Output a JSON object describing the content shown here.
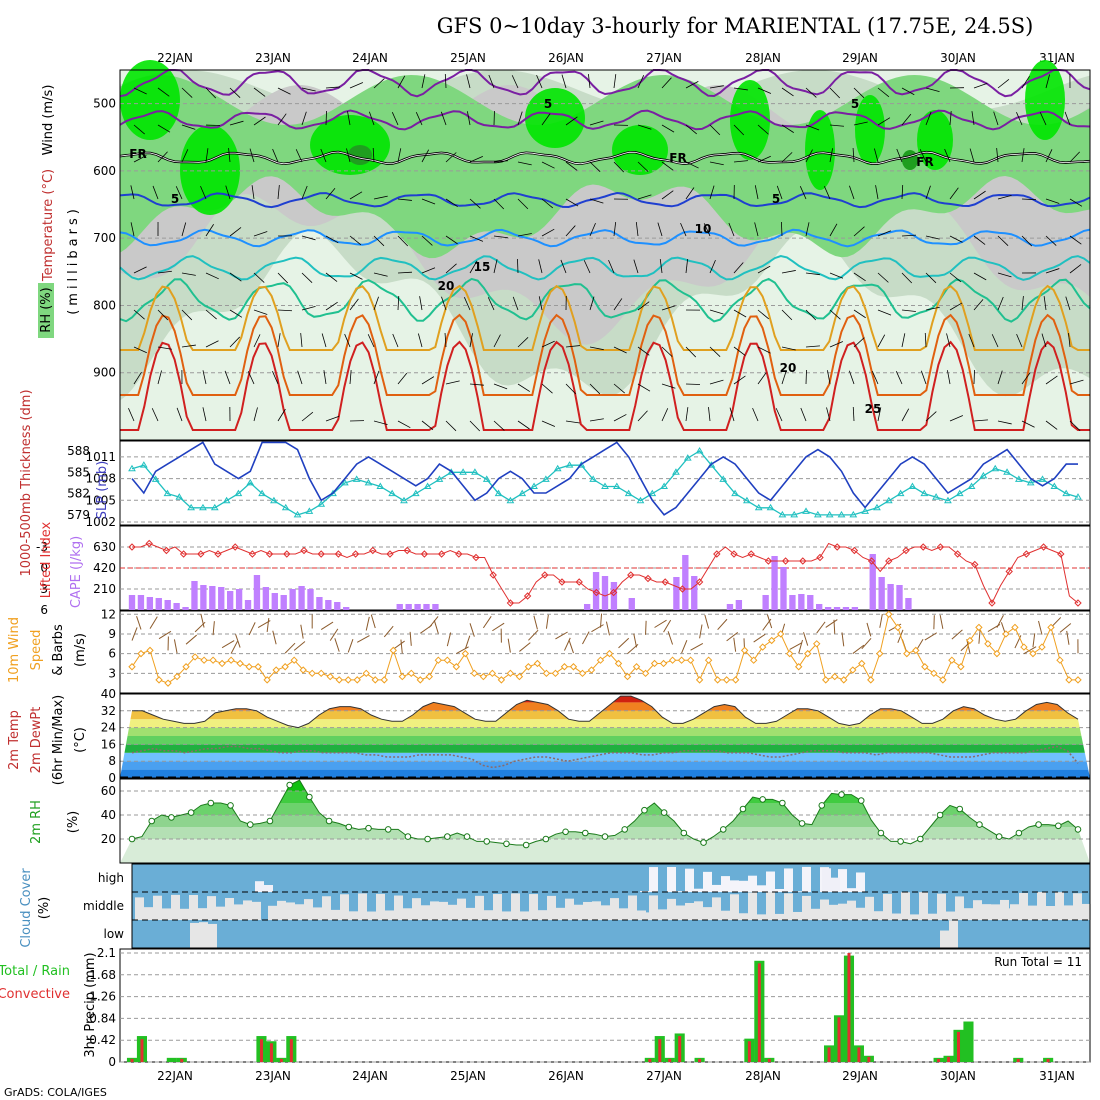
{
  "title": "GFS 0~10day 3-hourly for MARIENTAL (17.75E, 24.5S)",
  "footer": "GrADS: COLA/IGES",
  "dates": [
    "22JAN",
    "23JAN",
    "24JAN",
    "25JAN",
    "26JAN",
    "27JAN",
    "28JAN",
    "29JAN",
    "30JAN",
    "31JAN"
  ],
  "colors": {
    "rh_light": "#e6f3e6",
    "rh_mid": "#c7dcc7",
    "rh_grey": "#c9c9c9",
    "rh_green": "#7fd77f",
    "rh_bright": "#00e600",
    "rh_dark": "#1f9e1f",
    "slp": "#2040c0",
    "thickness": "#20c0c0",
    "lifted": "#e03030",
    "cape": "#c080ff",
    "speed": "#f0a020",
    "barb": "#8b5a2b",
    "cloud": "#6aaed6",
    "cloud_clear": "#e6e6e6",
    "rain_total": "#22c022",
    "rain_conv": "#e03030"
  },
  "chart_data": [
    {
      "id": "upper_air",
      "type": "heatmap",
      "legend_labels": {
        "rh": "RH (%)",
        "temp": "Temperature (°C)",
        "wind": "Wind (m/s)",
        "axis": "(millibars)"
      },
      "yticks": [
        500,
        600,
        700,
        800,
        900
      ],
      "ylim": [
        1000,
        450
      ],
      "contour_labels": [
        "5",
        "5",
        "FR",
        "FR",
        "FR",
        "5",
        "5",
        "10",
        "15",
        "20",
        "20",
        "25"
      ]
    },
    {
      "id": "slp_thickness",
      "type": "line",
      "left_ylabel": "1000-500mb Thickness (dm)",
      "right_ylabel": "SLP (mb)",
      "left_ticks": [
        579,
        582,
        585,
        588
      ],
      "right_ticks": [
        1002,
        1005,
        1008,
        1011
      ],
      "series": [
        {
          "name": "SLP (mb)",
          "values": [
            1008,
            1006,
            1009,
            1010,
            1011,
            1012,
            1013,
            1010,
            1009,
            1008,
            1009,
            1013,
            1013,
            1013,
            1012,
            1008,
            1005,
            1006,
            1008,
            1010,
            1011,
            1010,
            1009,
            1008,
            1007,
            1008,
            1010,
            1009,
            1007,
            1005,
            1006,
            1008,
            1009,
            1008,
            1006,
            1006,
            1007,
            1008,
            1010,
            1011,
            1012,
            1013,
            1011,
            1008,
            1005,
            1003,
            1004,
            1006,
            1008,
            1010,
            1011,
            1010,
            1008,
            1006,
            1005,
            1007,
            1009,
            1011,
            1012,
            1011,
            1009,
            1006,
            1004,
            1006,
            1008,
            1010,
            1011,
            1010,
            1008,
            1006,
            1007,
            1008,
            1010,
            1011,
            1012,
            1010,
            1008,
            1007,
            1008,
            1010,
            1010
          ]
        },
        {
          "name": "1000-500mb Thickness (dm)",
          "values": [
            585.5,
            586,
            584,
            582,
            581.5,
            580,
            580,
            580,
            581,
            582,
            583.5,
            582,
            581,
            580,
            579,
            579.5,
            580.5,
            582,
            583.5,
            584,
            583.5,
            583,
            582,
            581,
            582,
            583,
            584,
            585,
            585,
            585,
            584,
            582,
            581,
            582,
            583,
            584,
            585.5,
            586,
            586,
            584,
            583,
            583,
            582,
            581,
            582,
            583,
            585,
            587,
            588,
            586,
            584,
            582,
            581,
            580,
            580,
            579,
            579,
            579.5,
            579,
            579,
            579,
            579,
            579.5,
            580,
            581,
            582,
            583,
            582,
            581.5,
            581,
            582,
            583,
            584.5,
            585.5,
            585,
            584,
            583.5,
            584,
            583,
            582,
            581.5
          ]
        }
      ]
    },
    {
      "id": "lifted_cape",
      "type": "bar",
      "left_ylabel": "Lifted Index",
      "right_ylabel": "CAPE (J/kg)",
      "left_ticks": [
        "-3",
        "0",
        "3",
        "6"
      ],
      "right_ticks": [
        210,
        420,
        630
      ],
      "lifted_ylim": [
        -6,
        6
      ],
      "cape_ylim": [
        0,
        840
      ],
      "cape": [
        150,
        150,
        130,
        120,
        100,
        70,
        30,
        290,
        250,
        240,
        230,
        190,
        210,
        100,
        350,
        230,
        170,
        150,
        210,
        240,
        210,
        130,
        100,
        80,
        30,
        0,
        0,
        0,
        0,
        0,
        60,
        60,
        60,
        60,
        60,
        0,
        0,
        0,
        0,
        0,
        0,
        0,
        0,
        0,
        0,
        0,
        0,
        0,
        0,
        0,
        0,
        60,
        380,
        340,
        280,
        0,
        120,
        0,
        0,
        0,
        0,
        330,
        550,
        340,
        0,
        0,
        0,
        60,
        100,
        0,
        0,
        150,
        540,
        430,
        150,
        160,
        150,
        60,
        30,
        30,
        30,
        30,
        0,
        560,
        330,
        260,
        250,
        120,
        0,
        0,
        0,
        0,
        0,
        0,
        0,
        0,
        0,
        0,
        0,
        0,
        0,
        0,
        0,
        0,
        0,
        0,
        0
      ],
      "lifted": [
        -3,
        -3,
        -3.5,
        -3,
        -2.5,
        -3,
        -2,
        -2,
        -2,
        -2.5,
        -2,
        -2.5,
        -3,
        -2.5,
        -2,
        -2.5,
        -2,
        -2,
        -2,
        -2,
        -2.5,
        -2,
        -2,
        -2,
        -2,
        -1.5,
        -2,
        -2,
        -2.5,
        -2,
        -2,
        -2.5,
        -2.5,
        -2,
        -2,
        -2,
        -2,
        -2.5,
        -2,
        -2,
        -1.5,
        -1.5,
        1,
        3,
        5,
        5,
        4,
        2,
        1,
        1,
        2,
        2,
        2,
        3,
        3.5,
        4,
        3.5,
        2,
        1,
        1,
        1.5,
        2,
        2,
        2.5,
        3,
        3,
        2,
        0,
        -2,
        -3,
        -2,
        -1.5,
        -2,
        -1.5,
        -1,
        -1,
        -1,
        -1,
        -1,
        -1,
        -1.5,
        -3.5,
        -3,
        -3,
        -2.5,
        -1.5,
        -1,
        0.5,
        -1,
        -1.5,
        -2.5,
        -3,
        -3,
        -2.5,
        -3,
        -3,
        -2,
        -1,
        -0.5,
        2.5,
        5,
        2.5,
        0.5,
        -1.5,
        -2,
        -2.5,
        -3,
        -2.5,
        -2,
        4,
        5
      ]
    },
    {
      "id": "wind10m",
      "type": "line",
      "ylabel": "10m Wind Speed & Barbs (m/s)",
      "yticks": [
        3,
        6,
        9,
        12
      ],
      "ylim": [
        0,
        12.5
      ],
      "values": [
        4,
        6,
        6.5,
        2,
        1.5,
        2.5,
        4,
        5.5,
        5,
        5,
        4.5,
        5,
        4.5,
        4,
        4,
        2,
        3.5,
        4,
        5,
        3.5,
        3,
        3,
        2.5,
        2,
        2,
        2,
        3,
        2,
        2,
        6.5,
        2.5,
        3,
        2,
        2.5,
        5,
        5,
        4,
        6,
        3,
        2.5,
        3,
        2,
        3,
        2.5,
        4,
        4.5,
        3,
        3,
        4,
        4,
        3,
        3.5,
        5,
        6,
        4.5,
        2.5,
        4,
        3,
        4.5,
        4.5,
        5,
        5,
        5,
        2,
        5,
        2,
        2,
        2,
        6.5,
        5,
        7,
        8,
        9,
        6,
        4,
        6,
        7.5,
        2,
        2.5,
        2,
        3.5,
        4.5,
        2,
        6,
        12,
        10,
        6,
        6.5,
        4,
        3,
        2,
        5,
        4,
        8,
        10,
        7.5,
        6,
        9,
        10,
        7,
        6,
        7,
        10,
        5,
        2,
        2
      ]
    },
    {
      "id": "temp2m",
      "type": "area",
      "ylabel": "2m Temp 2m DewPt (6hr Min/Max) (°C)",
      "yticks": [
        0,
        8,
        16,
        24,
        32,
        40
      ],
      "ylim": [
        0,
        40
      ],
      "temp": [
        32,
        32,
        30,
        28,
        27,
        26,
        26,
        27,
        31,
        32,
        33,
        33,
        32,
        29,
        27,
        25,
        24,
        26,
        30,
        33,
        34,
        34,
        33,
        30,
        28,
        27,
        27,
        30,
        34,
        36,
        35,
        34,
        31,
        28,
        27,
        27,
        31,
        35,
        37,
        36,
        35,
        32,
        28,
        27,
        27,
        31,
        35,
        39,
        39,
        37,
        34,
        29,
        26,
        26,
        28,
        31,
        34,
        35,
        34,
        29,
        26,
        26,
        27,
        30,
        33,
        33,
        32,
        29,
        26,
        25,
        26,
        30,
        33,
        33,
        32,
        29,
        26,
        26,
        28,
        32,
        34,
        33,
        30,
        28,
        27,
        28,
        32,
        35,
        36,
        35,
        31,
        28
      ],
      "dewpoint": [
        12,
        13,
        14,
        13,
        13,
        12,
        13,
        14,
        14,
        15,
        15,
        14,
        14,
        13,
        12,
        12,
        13,
        13,
        12,
        12,
        12,
        12,
        11,
        11,
        10,
        10,
        10,
        11,
        11,
        11,
        11,
        10,
        9,
        6,
        5,
        6,
        8,
        9,
        10,
        10,
        9,
        8,
        9,
        10,
        11,
        12,
        12,
        12,
        11,
        11,
        12,
        12,
        13,
        13,
        13,
        13,
        12,
        12,
        12,
        11,
        10,
        10,
        11,
        12,
        13,
        13,
        13,
        12,
        12,
        12,
        11,
        12,
        12,
        12,
        12,
        12,
        11,
        10,
        10,
        10,
        11,
        12,
        12,
        12,
        12,
        13,
        14,
        15,
        13,
        7
      ]
    },
    {
      "id": "rh2m",
      "type": "area",
      "ylabel": "2m RH (%)",
      "yticks": [
        20,
        40,
        60
      ],
      "ylim": [
        0,
        70
      ],
      "values": [
        20,
        22,
        35,
        40,
        38,
        40,
        42,
        48,
        50,
        50,
        48,
        35,
        32,
        33,
        35,
        50,
        65,
        69,
        55,
        42,
        35,
        33,
        30,
        28,
        29,
        28,
        28,
        28,
        22,
        20,
        20,
        21,
        22,
        25,
        22,
        18,
        18,
        17,
        16,
        15,
        15,
        18,
        20,
        24,
        26,
        26,
        25,
        24,
        22,
        23,
        28,
        35,
        44,
        50,
        42,
        35,
        25,
        20,
        17,
        22,
        28,
        35,
        45,
        55,
        53,
        53,
        50,
        40,
        33,
        32,
        48,
        58,
        57,
        57,
        52,
        36,
        25,
        18,
        18,
        16,
        20,
        30,
        40,
        48,
        45,
        38,
        32,
        27,
        22,
        20,
        25,
        30,
        32,
        32,
        31,
        35,
        28
      ]
    },
    {
      "id": "cloud",
      "type": "heatmap",
      "ylabel": "Cloud Cover (%)",
      "row_labels": [
        "high",
        "middle",
        "low"
      ]
    },
    {
      "id": "precip",
      "type": "bar",
      "ylabel": "3hr Precip (mm)",
      "legend": [
        "Total / Rain",
        "Convective"
      ],
      "yticks": [
        0,
        0.42,
        0.84,
        1.26,
        1.68,
        2.1
      ],
      "ylim": [
        0,
        2.1
      ],
      "run_total_label": "Run Total = 11",
      "bars": [
        {
          "x": 0,
          "total": 0.08,
          "conv": 0.06
        },
        {
          "x": 1,
          "total": 0.5,
          "conv": 0.44
        },
        {
          "x": 4,
          "total": 0.08,
          "conv": 0.0
        },
        {
          "x": 5,
          "total": 0.08,
          "conv": 0.06
        },
        {
          "x": 13,
          "total": 0.5,
          "conv": 0.44
        },
        {
          "x": 14,
          "total": 0.4,
          "conv": 0.36
        },
        {
          "x": 15,
          "total": 0.08,
          "conv": 0.06
        },
        {
          "x": 16,
          "total": 0.5,
          "conv": 0.44
        },
        {
          "x": 52,
          "total": 0.08,
          "conv": 0.06
        },
        {
          "x": 53,
          "total": 0.5,
          "conv": 0.44
        },
        {
          "x": 54,
          "total": 0.08,
          "conv": 0.06
        },
        {
          "x": 55,
          "total": 0.55,
          "conv": 0.5
        },
        {
          "x": 57,
          "total": 0.08,
          "conv": 0.06
        },
        {
          "x": 62,
          "total": 0.45,
          "conv": 0.4
        },
        {
          "x": 63,
          "total": 1.95,
          "conv": 1.9
        },
        {
          "x": 64,
          "total": 0.08,
          "conv": 0.06
        },
        {
          "x": 70,
          "total": 0.32,
          "conv": 0.28
        },
        {
          "x": 71,
          "total": 0.9,
          "conv": 0.86
        },
        {
          "x": 72,
          "total": 2.05,
          "conv": 2.1
        },
        {
          "x": 73,
          "total": 0.32,
          "conv": 0.28
        },
        {
          "x": 74,
          "total": 0.12,
          "conv": 0.1
        },
        {
          "x": 81,
          "total": 0.08,
          "conv": 0.06
        },
        {
          "x": 82,
          "total": 0.12,
          "conv": 0.1
        },
        {
          "x": 83,
          "total": 0.62,
          "conv": 0.58
        },
        {
          "x": 84,
          "total": 0.78,
          "conv": 0.0
        },
        {
          "x": 89,
          "total": 0.08,
          "conv": 0.06
        },
        {
          "x": 92,
          "total": 0.08,
          "conv": 0.06
        }
      ]
    }
  ]
}
